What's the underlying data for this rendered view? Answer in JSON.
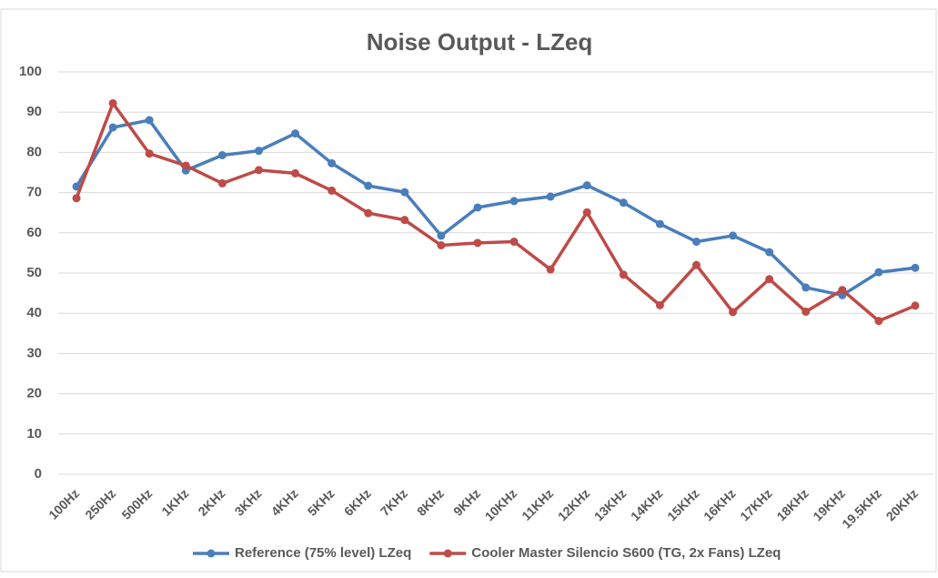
{
  "chart_data": {
    "type": "line",
    "title": "Noise Output  - LZeq",
    "categories": [
      "100Hz",
      "250Hz",
      "500Hz",
      "1KHz",
      "2KHz",
      "3KHz",
      "4KHz",
      "5KHz",
      "6KHz",
      "7KHz",
      "8KHz",
      "9KHz",
      "10KHz",
      "11KHz",
      "12KHz",
      "13KHz",
      "14KHz",
      "15KHz",
      "16KHz",
      "17KHz",
      "18KHz",
      "19KHz",
      "19.5KHz",
      "20KHz"
    ],
    "series": [
      {
        "name": "Reference (75% level) LZeq",
        "color": "#4a7ebb",
        "values": [
          71.5,
          86.2,
          88,
          75.5,
          79.3,
          80.4,
          84.7,
          77.3,
          71.7,
          70.1,
          59.3,
          66.3,
          67.9,
          69,
          71.8,
          67.5,
          62.2,
          57.8,
          59.3,
          55.2,
          46.4,
          44.5,
          50.2,
          51.3
        ]
      },
      {
        "name": "Cooler Master Silencio  S600 (TG, 2x Fans) LZeq",
        "color": "#be4b48",
        "values": [
          68.6,
          92.2,
          79.7,
          76.7,
          72.3,
          75.6,
          74.8,
          70.5,
          64.9,
          63.2,
          56.9,
          57.5,
          57.8,
          50.9,
          65.1,
          49.6,
          42,
          52,
          40.3,
          48.5,
          40.4,
          45.8,
          38.1,
          41.9
        ]
      }
    ],
    "ylim": [
      0,
      100
    ],
    "yticks": [
      0,
      10,
      20,
      30,
      40,
      50,
      60,
      70,
      80,
      90,
      100
    ],
    "grid": true,
    "legend": "bottom"
  }
}
